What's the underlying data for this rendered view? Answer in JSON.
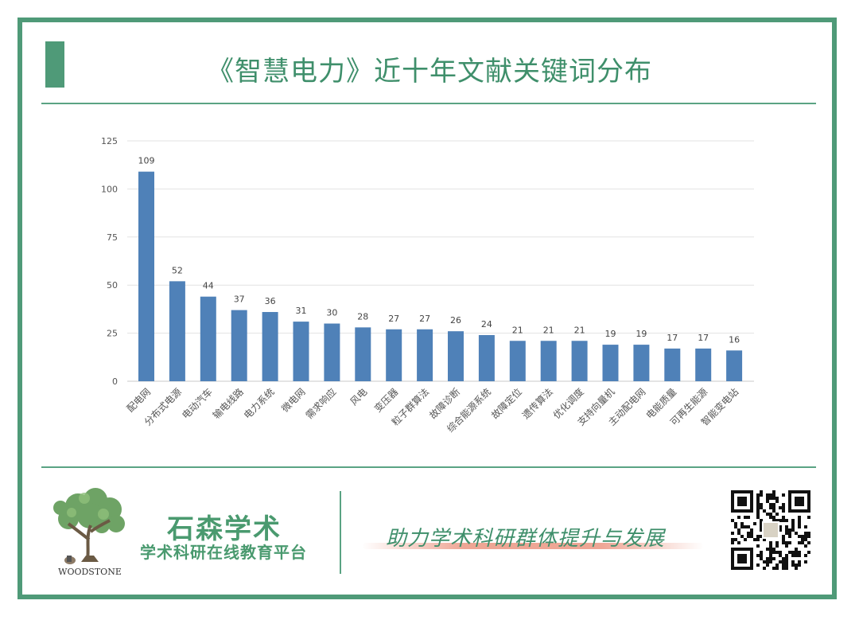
{
  "header": {
    "title": "《智慧电力》近十年文献关键词分布"
  },
  "footer": {
    "brand_name": "石森学术",
    "brand_sub": "学术科研在线教育平台",
    "logo_text": "WOODSTONE",
    "slogan": "助力学术科研群体提升与发展"
  },
  "colors": {
    "accent": "#4f9a78",
    "bar": "#4f81b8",
    "grid": "#e2e2e2"
  },
  "chart_data": {
    "type": "bar",
    "title": "",
    "xlabel": "",
    "ylabel": "",
    "ylim": [
      0,
      125
    ],
    "yticks": [
      0,
      25,
      50,
      75,
      100,
      125
    ],
    "grid": true,
    "categories": [
      "配电网",
      "分布式电源",
      "电动汽车",
      "输电线路",
      "电力系统",
      "微电网",
      "需求响应",
      "风电",
      "变压器",
      "粒子群算法",
      "故障诊断",
      "综合能源系统",
      "故障定位",
      "遗传算法",
      "优化调度",
      "支持向量机",
      "主动配电网",
      "电能质量",
      "可再生能源",
      "智能变电站"
    ],
    "values": [
      109,
      52,
      44,
      37,
      36,
      31,
      30,
      28,
      27,
      27,
      26,
      24,
      21,
      21,
      21,
      19,
      19,
      17,
      17,
      16
    ]
  }
}
